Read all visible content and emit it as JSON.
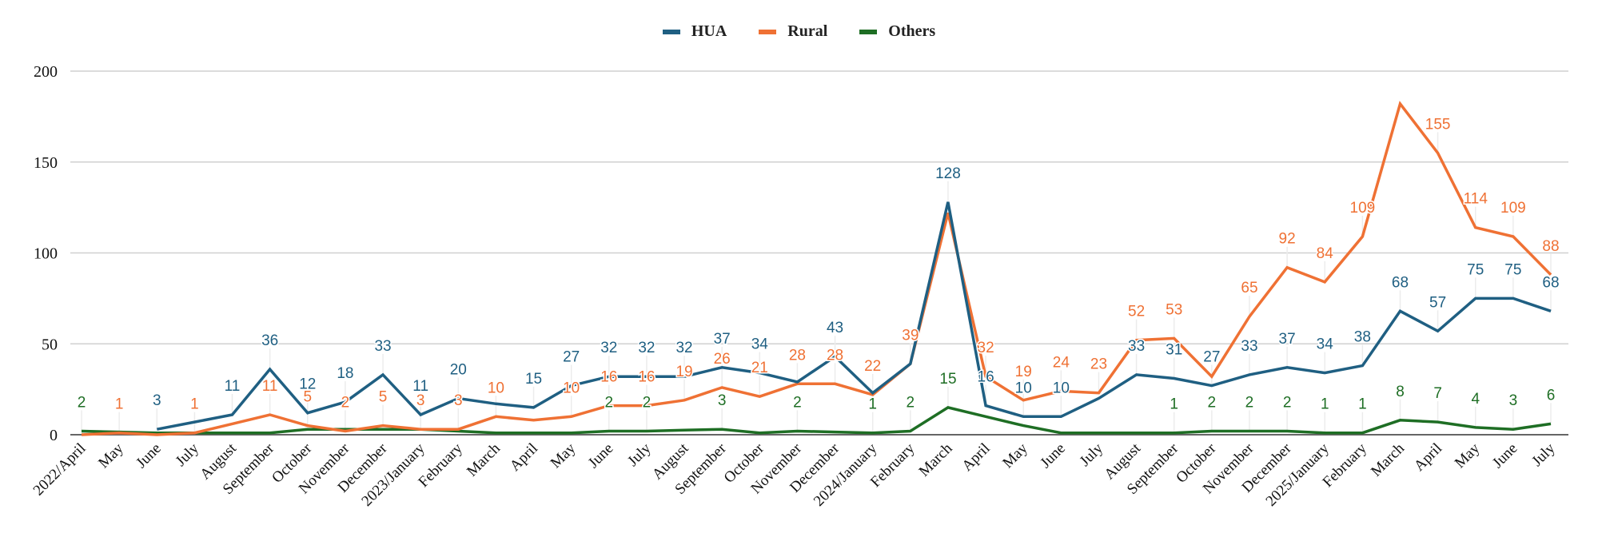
{
  "chart_data": {
    "type": "line",
    "title": "",
    "xlabel": "",
    "ylabel": "",
    "ylim": [
      0,
      200
    ],
    "yticks": [
      0,
      50,
      100,
      150,
      200
    ],
    "grid": true,
    "legend_position": "top",
    "categories": [
      "2022/April",
      "May",
      "June",
      "July",
      "August",
      "September",
      "October",
      "November",
      "December",
      "2023/January",
      "February",
      "March",
      "April",
      "May",
      "June",
      "July",
      "August",
      "September",
      "October",
      "November",
      "December",
      "2024/January",
      "February",
      "March",
      "April",
      "May",
      "June",
      "July",
      "August",
      "September",
      "October",
      "November",
      "December",
      "2025/January",
      "February",
      "March",
      "April",
      "May",
      "June",
      "July"
    ],
    "series": [
      {
        "name": "HUA",
        "color": "#1f5f82",
        "values": [
          null,
          null,
          3,
          7,
          11,
          36,
          12,
          18,
          33,
          11,
          20,
          17,
          15,
          27,
          32,
          32,
          32,
          37,
          34,
          29,
          43,
          23,
          39,
          128,
          16,
          10,
          10,
          20,
          33,
          31,
          27,
          33,
          37,
          34,
          38,
          68,
          57,
          75,
          75,
          68
        ],
        "labels": [
          null,
          null,
          3,
          null,
          11,
          36,
          12,
          18,
          33,
          11,
          20,
          null,
          15,
          27,
          32,
          32,
          32,
          37,
          34,
          null,
          43,
          null,
          null,
          128,
          16,
          10,
          10,
          null,
          33,
          31,
          27,
          33,
          37,
          34,
          38,
          68,
          57,
          75,
          75,
          68
        ]
      },
      {
        "name": "Rural",
        "color": "#ef7134",
        "values": [
          0,
          1,
          0,
          1,
          6,
          11,
          5,
          2,
          5,
          3,
          3,
          10,
          8,
          10,
          16,
          16,
          19,
          26,
          21,
          28,
          28,
          22,
          39,
          122,
          32,
          19,
          24,
          23,
          52,
          53,
          32,
          65,
          92,
          84,
          109,
          182,
          155,
          114,
          109,
          88
        ],
        "labels": [
          null,
          1,
          null,
          1,
          null,
          11,
          5,
          2,
          5,
          3,
          3,
          10,
          null,
          10,
          16,
          16,
          19,
          26,
          21,
          28,
          28,
          22,
          39,
          null,
          32,
          19,
          24,
          23,
          52,
          53,
          null,
          65,
          92,
          84,
          109,
          null,
          155,
          114,
          109,
          88
        ]
      },
      {
        "name": "Others",
        "color": "#1e6e24",
        "values": [
          2,
          1.5,
          1,
          1,
          1,
          1,
          3,
          3,
          3,
          3,
          2,
          1,
          1,
          1,
          2,
          2,
          2.5,
          3,
          1,
          2,
          1.5,
          1,
          2,
          15,
          10,
          5,
          1,
          1,
          1,
          1,
          2,
          2,
          2,
          1,
          1,
          8,
          7,
          4,
          3,
          6
        ],
        "labels": [
          2,
          null,
          null,
          null,
          null,
          null,
          null,
          null,
          null,
          null,
          null,
          null,
          null,
          null,
          2,
          2,
          null,
          3,
          null,
          2,
          null,
          1,
          2,
          15,
          null,
          null,
          null,
          null,
          null,
          1,
          2,
          2,
          2,
          1,
          1,
          8,
          7,
          4,
          3,
          6
        ]
      }
    ]
  }
}
